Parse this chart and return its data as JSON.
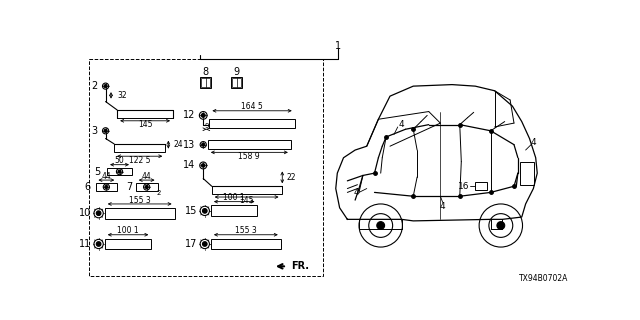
{
  "bg_color": "#ffffff",
  "line_color": "#000000",
  "fig_width": 6.4,
  "fig_height": 3.2,
  "diagram_code": "TX94B0702A"
}
